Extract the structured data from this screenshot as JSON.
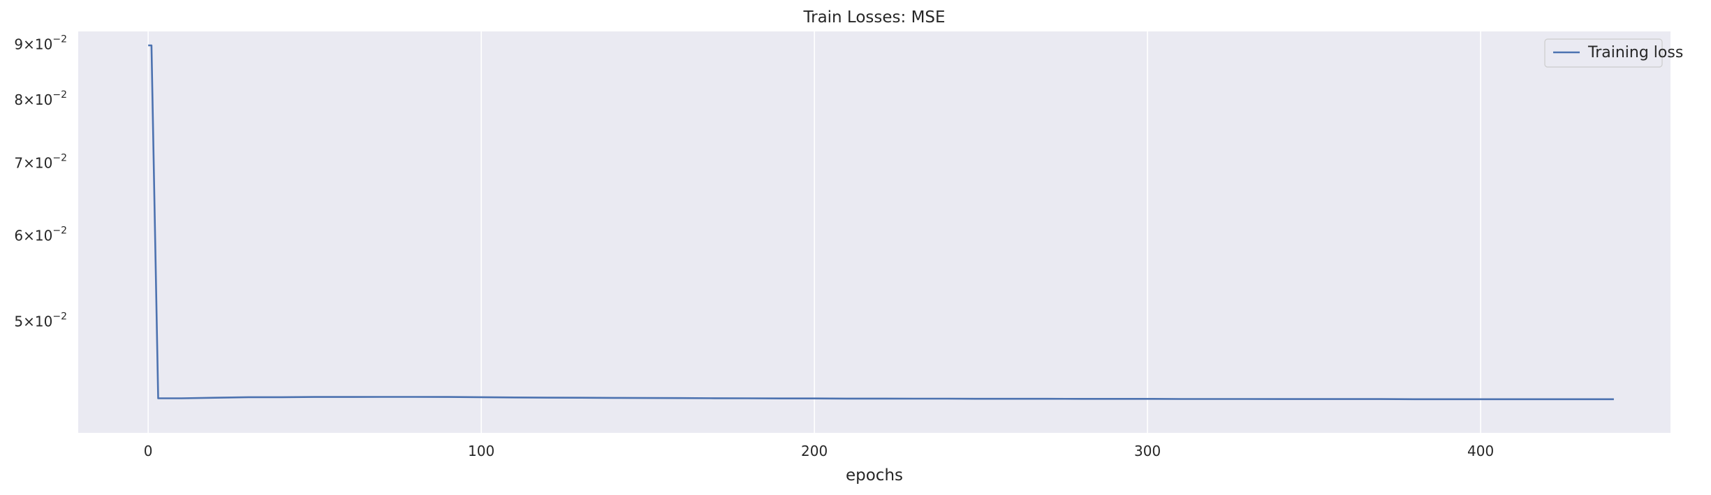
{
  "chart_data": {
    "type": "line",
    "title": "Train Losses:  MSE",
    "xlabel": "epochs",
    "ylabel": "",
    "yscale": "log",
    "grid": "vertical",
    "legend_position": "top-right",
    "xlim": [
      -21,
      457
    ],
    "ylim": [
      0.0395,
      0.0925
    ],
    "x_ticks": [
      0,
      100,
      200,
      300,
      400
    ],
    "y_ticks": [
      {
        "value": 0.09,
        "mantissa": "9",
        "base": "10",
        "exp": "−2"
      },
      {
        "value": 0.08,
        "mantissa": "8",
        "base": "10",
        "exp": "−2"
      },
      {
        "value": 0.07,
        "mantissa": "7",
        "base": "10",
        "exp": "−2"
      },
      {
        "value": 0.06,
        "mantissa": "6",
        "base": "10",
        "exp": "−2"
      },
      {
        "value": 0.05,
        "mantissa": "5",
        "base": "10",
        "exp": "−2"
      }
    ],
    "series": [
      {
        "name": "Training loss",
        "color": "#4c72b0",
        "x": [
          0,
          1,
          3,
          10,
          20,
          30,
          40,
          50,
          60,
          70,
          80,
          90,
          100,
          110,
          120,
          130,
          140,
          150,
          160,
          170,
          180,
          190,
          200,
          210,
          220,
          230,
          240,
          250,
          260,
          270,
          280,
          290,
          300,
          310,
          320,
          330,
          340,
          350,
          360,
          370,
          380,
          390,
          400,
          410,
          420,
          430,
          440
        ],
        "y": [
          0.0898,
          0.0898,
          0.0425,
          0.0425,
          0.04255,
          0.0426,
          0.0426,
          0.04262,
          0.04262,
          0.04263,
          0.04263,
          0.04262,
          0.0426,
          0.04258,
          0.04256,
          0.04255,
          0.04254,
          0.04253,
          0.04252,
          0.04251,
          0.0425,
          0.04249,
          0.04249,
          0.04248,
          0.04248,
          0.04247,
          0.04247,
          0.04246,
          0.04246,
          0.04246,
          0.04245,
          0.04245,
          0.04245,
          0.04244,
          0.04244,
          0.04244,
          0.04243,
          0.04243,
          0.04243,
          0.04243,
          0.04242,
          0.04242,
          0.04242,
          0.04242,
          0.04242,
          0.04242,
          0.04242
        ]
      }
    ]
  }
}
